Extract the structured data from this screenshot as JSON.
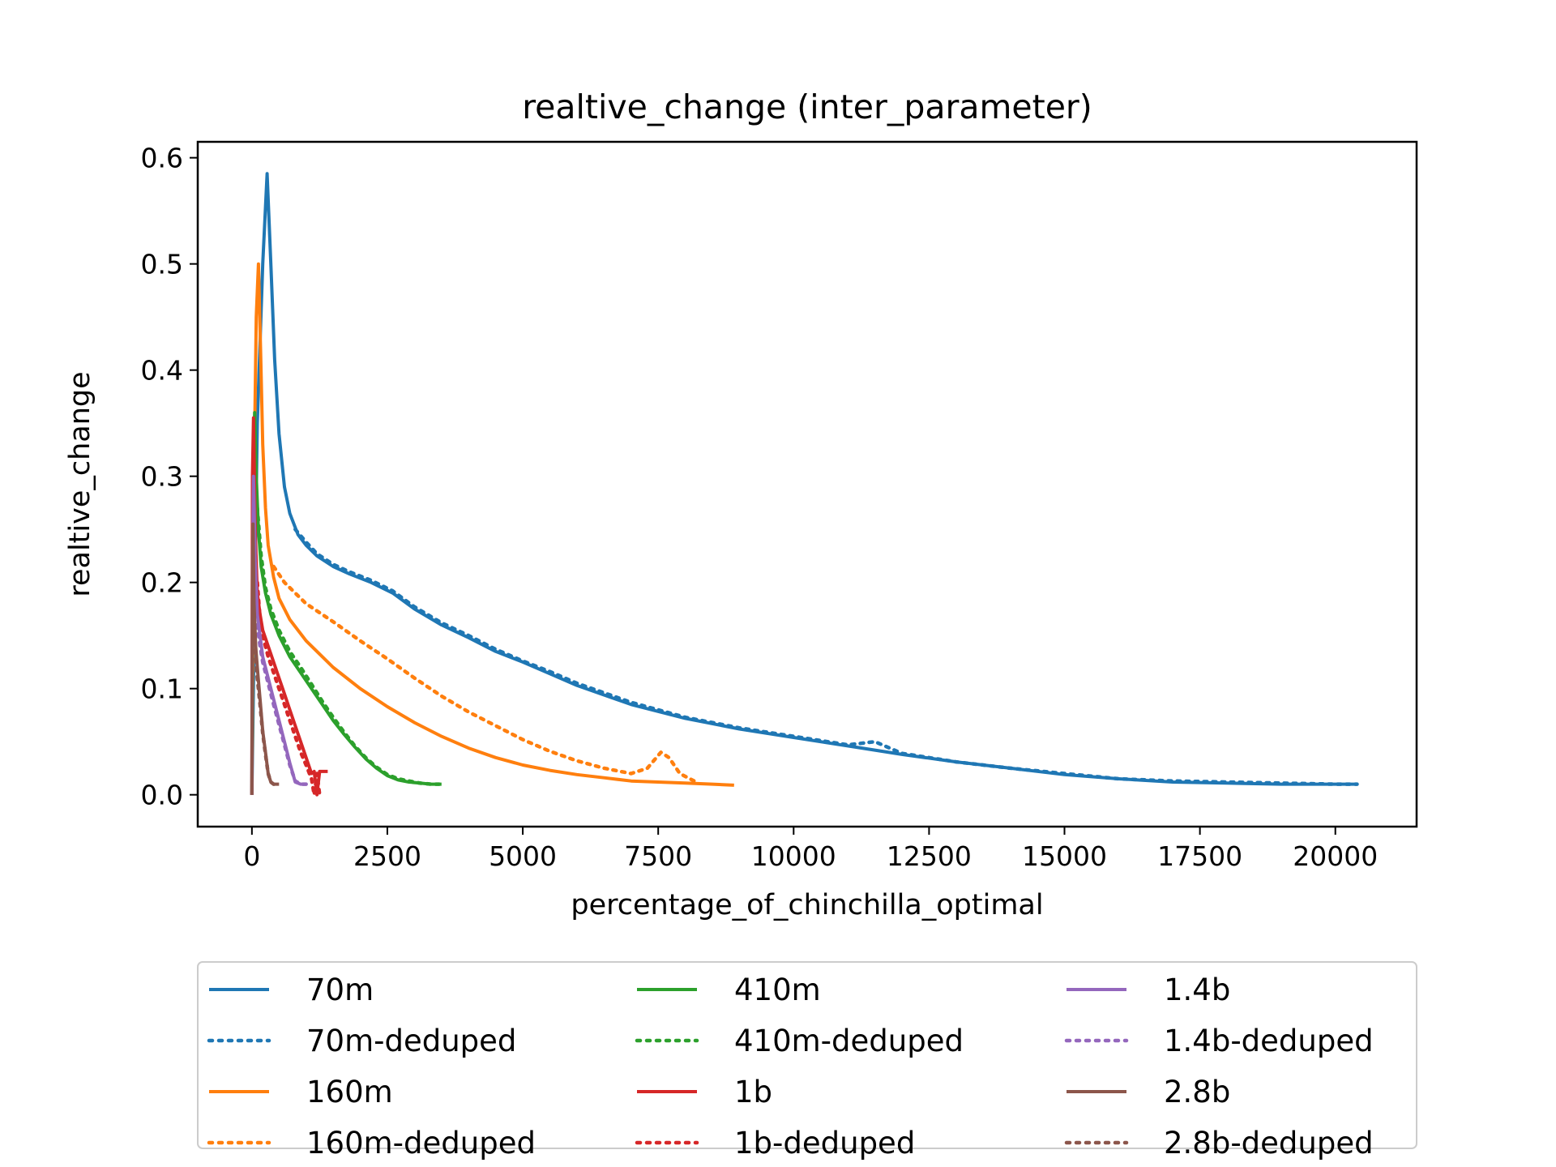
{
  "chart_data": {
    "type": "line",
    "title": "realtive_change (inter_parameter)",
    "xlabel": "percentage_of_chinchilla_optimal",
    "ylabel": "realtive_change",
    "xlim": [
      -1000,
      21500
    ],
    "ylim": [
      -0.03,
      0.615
    ],
    "x_ticks": [
      0,
      2500,
      5000,
      7500,
      10000,
      12500,
      15000,
      17500,
      20000
    ],
    "y_ticks": [
      0.0,
      0.1,
      0.2,
      0.3,
      0.4,
      0.5,
      0.6
    ],
    "x_tick_labels": [
      "0",
      "2500",
      "5000",
      "7500",
      "10000",
      "12500",
      "15000",
      "17500",
      "20000"
    ],
    "y_tick_labels": [
      "0.0",
      "0.1",
      "0.2",
      "0.3",
      "0.4",
      "0.5",
      "0.6"
    ],
    "grid": false,
    "legend": {
      "position": "below",
      "columns": 3
    },
    "series": [
      {
        "name": "70m",
        "color": "#1f77b4",
        "style": "solid",
        "x": [
          0,
          100,
          200,
          280,
          350,
          420,
          500,
          600,
          700,
          850,
          1000,
          1200,
          1500,
          1800,
          2200,
          2600,
          3000,
          3500,
          4000,
          4500,
          5000,
          5500,
          6000,
          7000,
          8000,
          9000,
          10000,
          11000,
          12000,
          13000,
          14000,
          15000,
          16000,
          17000,
          18000,
          19000,
          20000,
          20400
        ],
        "y": [
          0.0,
          0.35,
          0.5,
          0.585,
          0.5,
          0.41,
          0.34,
          0.29,
          0.265,
          0.245,
          0.235,
          0.225,
          0.215,
          0.208,
          0.2,
          0.19,
          0.175,
          0.16,
          0.148,
          0.135,
          0.125,
          0.114,
          0.103,
          0.085,
          0.072,
          0.062,
          0.054,
          0.046,
          0.038,
          0.031,
          0.025,
          0.019,
          0.015,
          0.012,
          0.011,
          0.01,
          0.01,
          0.01
        ]
      },
      {
        "name": "70m-deduped",
        "color": "#1f77b4",
        "style": "dotted",
        "x": [
          800,
          1000,
          1200,
          1500,
          1800,
          2200,
          2600,
          3000,
          3500,
          4000,
          4500,
          5000,
          5500,
          6000,
          7000,
          8000,
          9000,
          10000,
          11000,
          11500,
          12000,
          13000,
          14000,
          15000,
          16000,
          17000,
          18000,
          19000,
          20000,
          20400
        ],
        "y": [
          0.25,
          0.238,
          0.227,
          0.217,
          0.21,
          0.202,
          0.192,
          0.177,
          0.162,
          0.15,
          0.137,
          0.126,
          0.116,
          0.105,
          0.087,
          0.073,
          0.063,
          0.055,
          0.047,
          0.05,
          0.039,
          0.031,
          0.025,
          0.02,
          0.015,
          0.013,
          0.012,
          0.011,
          0.01,
          0.01
        ]
      },
      {
        "name": "160m",
        "color": "#ff7f0e",
        "style": "solid",
        "x": [
          0,
          40,
          80,
          120,
          160,
          200,
          250,
          300,
          400,
          500,
          700,
          1000,
          1500,
          2000,
          2500,
          3000,
          3500,
          4000,
          4500,
          5000,
          5500,
          6000,
          6500,
          7000,
          7500,
          8000,
          8500,
          8900
        ],
        "y": [
          0.0,
          0.3,
          0.45,
          0.5,
          0.42,
          0.33,
          0.27,
          0.235,
          0.205,
          0.185,
          0.165,
          0.145,
          0.12,
          0.1,
          0.083,
          0.068,
          0.055,
          0.044,
          0.035,
          0.028,
          0.023,
          0.019,
          0.016,
          0.013,
          0.012,
          0.011,
          0.01,
          0.009
        ]
      },
      {
        "name": "160m-deduped",
        "color": "#ff7f0e",
        "style": "dotted",
        "x": [
          400,
          600,
          800,
          1000,
          1500,
          2000,
          2500,
          3000,
          3500,
          4000,
          4500,
          5000,
          5500,
          6000,
          6500,
          7000,
          7300,
          7550,
          7700,
          7900,
          8200
        ],
        "y": [
          0.215,
          0.2,
          0.19,
          0.18,
          0.163,
          0.145,
          0.128,
          0.11,
          0.093,
          0.078,
          0.065,
          0.052,
          0.041,
          0.032,
          0.025,
          0.02,
          0.025,
          0.04,
          0.035,
          0.02,
          0.012
        ]
      },
      {
        "name": "410m",
        "color": "#2ca02c",
        "style": "solid",
        "x": [
          0,
          20,
          50,
          80,
          120,
          170,
          250,
          350,
          500,
          700,
          900,
          1100,
          1300,
          1500,
          1700,
          1900,
          2100,
          2300,
          2500,
          2700,
          2900,
          3100,
          3300,
          3500
        ],
        "y": [
          0.0,
          0.25,
          0.36,
          0.3,
          0.25,
          0.215,
          0.19,
          0.17,
          0.15,
          0.13,
          0.115,
          0.1,
          0.085,
          0.07,
          0.057,
          0.045,
          0.034,
          0.025,
          0.018,
          0.014,
          0.012,
          0.011,
          0.01,
          0.01
        ]
      },
      {
        "name": "410m-deduped",
        "color": "#2ca02c",
        "style": "dotted",
        "x": [
          100,
          170,
          250,
          350,
          500,
          700,
          900,
          1100,
          1300,
          1500,
          1700,
          1900,
          2100,
          2300,
          2500,
          2700,
          2900,
          3100,
          3300,
          3500
        ],
        "y": [
          0.27,
          0.225,
          0.195,
          0.175,
          0.155,
          0.135,
          0.12,
          0.104,
          0.088,
          0.073,
          0.059,
          0.046,
          0.035,
          0.026,
          0.019,
          0.015,
          0.013,
          0.011,
          0.01,
          0.01
        ]
      },
      {
        "name": "1b",
        "color": "#d62728",
        "style": "solid",
        "x": [
          0,
          10,
          30,
          60,
          100,
          150,
          200,
          300,
          400,
          500,
          600,
          700,
          800,
          900,
          1000,
          1100,
          1150,
          1200,
          1250,
          1300,
          1400
        ],
        "y": [
          0.0,
          0.3,
          0.355,
          0.25,
          0.19,
          0.17,
          0.155,
          0.14,
          0.125,
          0.11,
          0.095,
          0.08,
          0.065,
          0.05,
          0.035,
          0.02,
          0.022,
          0.0,
          0.022,
          0.022,
          0.022
        ]
      },
      {
        "name": "1b-deduped",
        "color": "#d62728",
        "style": "dotted",
        "x": [
          100,
          150,
          200,
          300,
          400,
          500,
          600,
          700,
          800,
          900,
          1000,
          1100,
          1150,
          1200,
          1250
        ],
        "y": [
          0.2,
          0.165,
          0.15,
          0.13,
          0.115,
          0.1,
          0.085,
          0.07,
          0.055,
          0.04,
          0.028,
          0.015,
          0.0,
          0.02,
          0.0
        ]
      },
      {
        "name": "1.4b",
        "color": "#9467bd",
        "style": "solid",
        "x": [
          0,
          10,
          30,
          60,
          100,
          150,
          200,
          300,
          400,
          500,
          600,
          700,
          800,
          900,
          1000
        ],
        "y": [
          0.0,
          0.2,
          0.3,
          0.22,
          0.17,
          0.15,
          0.13,
          0.11,
          0.09,
          0.07,
          0.05,
          0.03,
          0.012,
          0.01,
          0.01
        ]
      },
      {
        "name": "1.4b-deduped",
        "color": "#9467bd",
        "style": "dotted",
        "x": [
          100,
          150,
          200,
          300,
          400,
          500,
          600,
          700,
          800,
          900,
          1000
        ],
        "y": [
          0.16,
          0.14,
          0.125,
          0.105,
          0.085,
          0.066,
          0.047,
          0.028,
          0.013,
          0.01,
          0.01
        ]
      },
      {
        "name": "2.8b",
        "color": "#8c564b",
        "style": "solid",
        "x": [
          0,
          10,
          20,
          40,
          70,
          100,
          150,
          200,
          250,
          300,
          350,
          400,
          450,
          500
        ],
        "y": [
          0.0,
          0.2,
          0.255,
          0.18,
          0.14,
          0.12,
          0.09,
          0.06,
          0.04,
          0.02,
          0.012,
          0.01,
          0.01,
          0.01
        ]
      },
      {
        "name": "2.8b-deduped",
        "color": "#8c564b",
        "style": "dotted",
        "x": [
          40,
          70,
          100,
          150,
          200,
          250,
          300,
          350,
          400,
          450,
          500
        ],
        "y": [
          0.17,
          0.13,
          0.11,
          0.085,
          0.058,
          0.038,
          0.02,
          0.012,
          0.01,
          0.01,
          0.01
        ]
      }
    ]
  }
}
